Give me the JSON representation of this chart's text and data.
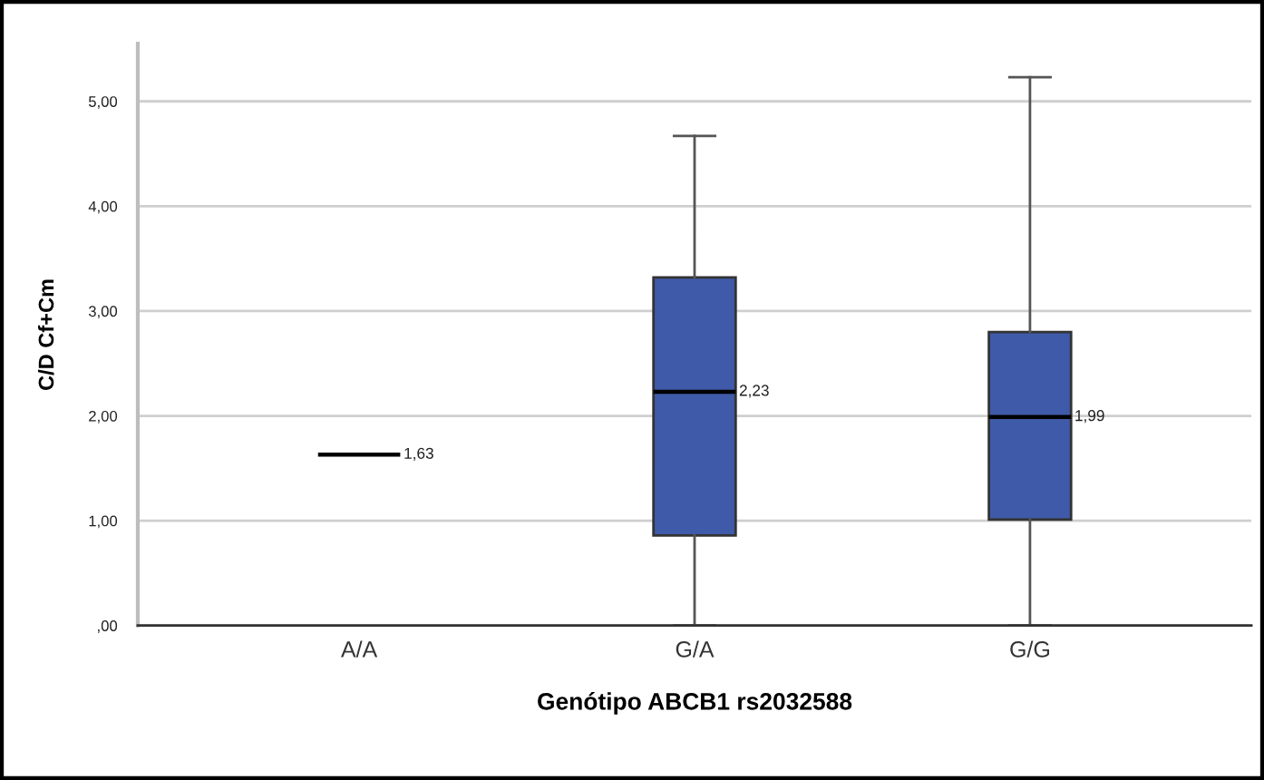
{
  "chart_data": {
    "type": "box",
    "xlabel": "Genótipo ABCB1 rs2032588",
    "ylabel": "C/D Cf+Cm",
    "categories": [
      "A/A",
      "G/A",
      "G/G"
    ],
    "series": [
      {
        "colors": [
          "#000000",
          "#3f5aa8",
          "#3f5aa8"
        ],
        "boxes": [
          {
            "low": 1.63,
            "q1": 1.63,
            "median": 1.63,
            "q3": 1.63,
            "high": 1.63
          },
          {
            "low": 0,
            "q1": 0.86,
            "median": 2.23,
            "q3": 3.32,
            "high": 4.67
          },
          {
            "low": 0,
            "q1": 1.01,
            "median": 1.99,
            "q3": 2.8,
            "high": 5.23
          }
        ]
      }
    ],
    "ylim": [
      0,
      5.55
    ],
    "yticks": [
      {
        "value": 0,
        "label": ",00"
      },
      {
        "value": 1,
        "label": "1,00"
      },
      {
        "value": 2,
        "label": "2,00"
      },
      {
        "value": 3,
        "label": "3,00"
      },
      {
        "value": 4,
        "label": "4,00"
      },
      {
        "value": 5,
        "label": "5,00"
      }
    ],
    "grid": "y",
    "annotations": [
      {
        "text": "1,63",
        "x": "A/A",
        "y": 1.63
      },
      {
        "text": "2,23",
        "x": "G/A",
        "y": 2.23
      },
      {
        "text": "1,99",
        "x": "G/G",
        "y": 1.99
      }
    ]
  }
}
